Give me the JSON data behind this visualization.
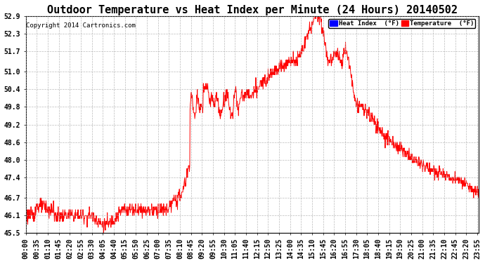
{
  "title": "Outdoor Temperature vs Heat Index per Minute (24 Hours) 20140502",
  "copyright": "Copyright 2014 Cartronics.com",
  "legend_labels": [
    "Heat Index  (°F)",
    "Temperature  (°F)"
  ],
  "legend_colors": [
    "blue",
    "red"
  ],
  "line_color": "red",
  "background_color": "#ffffff",
  "plot_bg_color": "#ffffff",
  "grid_color": "#aaaaaa",
  "ylim": [
    45.5,
    52.9
  ],
  "yticks": [
    45.5,
    46.1,
    46.7,
    47.4,
    48.0,
    48.6,
    49.2,
    49.8,
    50.4,
    51.0,
    51.7,
    52.3,
    52.9
  ],
  "xtick_step": 35,
  "xlabel_rotation": 90,
  "title_fontsize": 11,
  "tick_fontsize": 7,
  "copyright_fontsize": 6.5,
  "linewidth": 0.7
}
